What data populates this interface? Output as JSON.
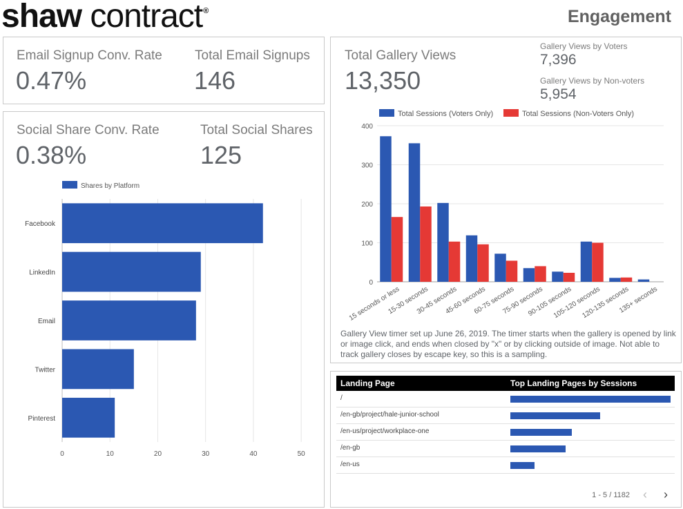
{
  "header": {
    "logo_bold": "shaw",
    "logo_regular": "contract",
    "logo_mark": "®",
    "title": "Engagement"
  },
  "email_kpis": {
    "conv_label": "Email Signup Conv. Rate",
    "conv_value": "0.47%",
    "total_label": "Total Email Signups",
    "total_value": "146"
  },
  "social_kpis": {
    "conv_label": "Social Share Conv. Rate",
    "conv_value": "0.38%",
    "total_label": "Total Social Shares",
    "total_value": "125"
  },
  "gallery_kpis": {
    "total_label": "Total Gallery Views",
    "total_value": "13,350",
    "voters_label": "Gallery Views by Voters",
    "voters_value": "7,396",
    "nonvoters_label": "Gallery Views by Non-voters",
    "nonvoters_value": "5,954"
  },
  "colors": {
    "blue": "#2b58b2",
    "red": "#e53935"
  },
  "chart_data": [
    {
      "type": "bar",
      "orientation": "horizontal",
      "categories": [
        "Facebook",
        "LinkedIn",
        "Email",
        "Twitter",
        "Pinterest"
      ],
      "series": [
        {
          "name": "Shares by Platform",
          "values": [
            42,
            29,
            28,
            15,
            11
          ]
        }
      ],
      "xticks": [
        0,
        10,
        20,
        30,
        40,
        50
      ],
      "xlim": [
        0,
        52
      ],
      "grid": true,
      "legend": "top-left"
    },
    {
      "type": "bar",
      "categories": [
        "15 seconds or less",
        "15-30 seconds",
        "30-45 seconds",
        "45-60 seconds",
        "60-75 seconds",
        "75-90 seconds",
        "90-105 seconds",
        "105-120 seconds",
        "120-135 seconds",
        "135+ seconds"
      ],
      "series": [
        {
          "name": "Total Sessions (Voters Only)",
          "values": [
            373,
            355,
            202,
            119,
            72,
            35,
            26,
            103,
            10,
            6
          ]
        },
        {
          "name": "Total Sessions (Non-Voters Only)",
          "values": [
            166,
            193,
            103,
            96,
            54,
            40,
            23,
            100,
            11,
            0
          ]
        }
      ],
      "yticks": [
        0,
        100,
        200,
        300,
        400
      ],
      "ylim": [
        0,
        400
      ],
      "grid": true,
      "legend": "top-left"
    },
    {
      "type": "table",
      "columns": [
        "Landing Page",
        "Top Landing Pages by Sessions"
      ],
      "rows": [
        {
          "page": "/",
          "value": 1.0
        },
        {
          "page": "/en-gb/project/hale-junior-school",
          "value": 0.56
        },
        {
          "page": "/en-us/project/workplace-one",
          "value": 0.385
        },
        {
          "page": "/en-gb",
          "value": 0.345
        },
        {
          "page": "/en-us",
          "value": 0.15
        }
      ]
    }
  ],
  "gallery_note": "Gallery View timer set up June 26, 2019. The timer starts when the gallery is opened by link or image click, and ends when closed by \"x\" or by clicking outside of image. Not able to track gallery closes by escape key, so this is a sampling.",
  "table": {
    "pager": "1 - 5 / 1182",
    "prev_icon": "chevron-left-icon",
    "next_icon": "chevron-right-icon"
  }
}
